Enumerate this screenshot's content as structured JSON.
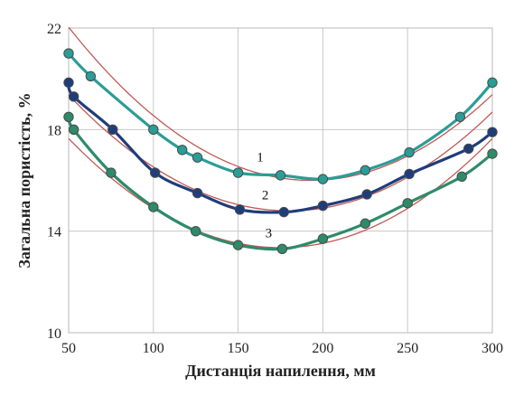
{
  "chart_data": {
    "type": "line",
    "xlabel": "Дистанція напилення, мм",
    "ylabel": "Загальна пористість, %",
    "xlim": [
      50,
      300
    ],
    "ylim": [
      10,
      22
    ],
    "xticks": [
      50,
      100,
      150,
      200,
      250,
      300
    ],
    "yticks": [
      10,
      14,
      18,
      22
    ],
    "grid": true,
    "series": [
      {
        "name": "1",
        "color": "#2a9d96",
        "x": [
          50,
          63,
          100,
          117,
          126,
          150,
          175,
          200,
          225,
          251,
          281,
          300
        ],
        "y": [
          21.0,
          20.1,
          18.0,
          17.2,
          16.9,
          16.3,
          16.2,
          16.05,
          16.4,
          17.1,
          18.5,
          19.85
        ]
      },
      {
        "name": "2",
        "color": "#1f3d7a",
        "x": [
          50,
          53,
          76,
          101,
          126,
          151,
          177,
          200,
          226,
          251,
          286,
          300
        ],
        "y": [
          19.85,
          19.3,
          18.0,
          16.3,
          15.5,
          14.85,
          14.75,
          15.0,
          15.45,
          16.25,
          17.25,
          17.9
        ]
      },
      {
        "name": "3",
        "color": "#2e8b6a",
        "x": [
          50,
          53,
          75,
          100,
          125,
          150,
          176,
          200,
          225,
          250,
          282,
          300
        ],
        "y": [
          18.5,
          18.0,
          16.3,
          14.95,
          14.0,
          13.45,
          13.3,
          13.7,
          14.3,
          15.1,
          16.15,
          17.05
        ]
      }
    ],
    "fits": [
      {
        "color": "#c05a55",
        "a": 16.0,
        "b": 193,
        "c": 0.000295
      },
      {
        "color": "#c05a55",
        "a": 14.8,
        "b": 180,
        "c": 0.00027
      },
      {
        "color": "#c05a55",
        "a": 13.35,
        "b": 175,
        "c": 0.000275
      }
    ],
    "curve_labels": [
      {
        "text": "1",
        "x": 163,
        "y": 16.75
      },
      {
        "text": "2",
        "x": 166,
        "y": 15.25
      },
      {
        "text": "3",
        "x": 168,
        "y": 13.75
      }
    ]
  }
}
